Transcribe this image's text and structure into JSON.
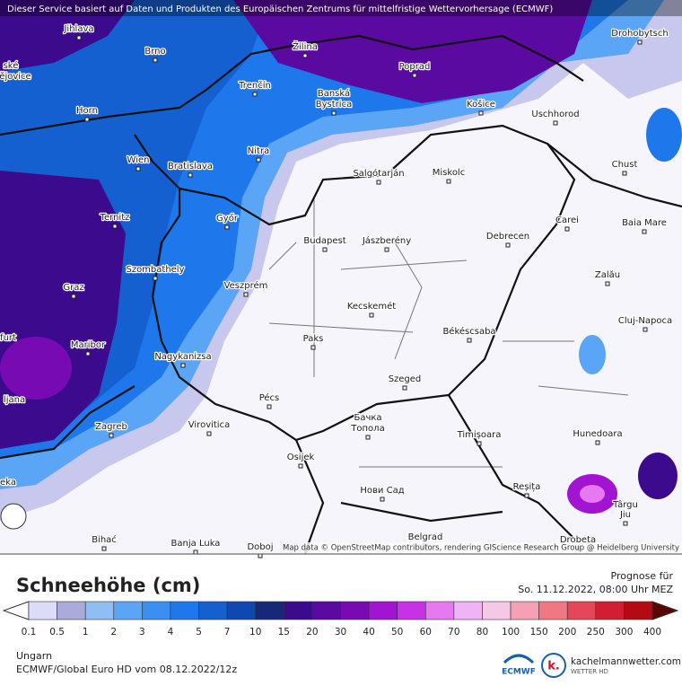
{
  "header": {
    "notice": "Dieser Service basiert auf Daten und Produkten des Europäischen Zentrums für mittelfristige Wettervorhersage (ECMWF)"
  },
  "map": {
    "cities": [
      "Jihlava",
      "Brno",
      "Žilina",
      "Poprad",
      "Drohobytsch",
      "ské",
      "ějovice",
      "Trenčín",
      "Banská",
      "Bystrica",
      "Košice",
      "Uschhorod",
      "Horn",
      "Nitra",
      "Wien",
      "Bratislava",
      "Salgótarján",
      "Miskolc",
      "Chust",
      "Ternitz",
      "Győr",
      "Carei",
      "Baia Mare",
      "Budapest",
      "Jászberény",
      "Debrecen",
      "Szombathely",
      "Zalău",
      "Graz",
      "Veszprém",
      "Kecskemét",
      "Cluj-Napoca",
      "furt",
      "Paks",
      "Békéscsaba",
      "Maribor",
      "Nagykanizsa",
      "Szeged",
      "ljana",
      "Pécs",
      "Zagreb",
      "Virovitica",
      "Бачка",
      "Топола",
      "Timișoara",
      "Hunedoara",
      "Osijek",
      "eka",
      "Нови Сад",
      "Reșița",
      "Târgu",
      "Jiu",
      "Bihać",
      "Banja Luka",
      "Doboj",
      "Belgrad",
      "Drobeta"
    ],
    "attribution": "Map data © OpenStreetMap contributors, rendering GIScience Research Group @ Heidelberg University"
  },
  "legend": {
    "title": "Schneehöhe (cm)",
    "levels": [
      0.1,
      0.5,
      1,
      2,
      3,
      4,
      5,
      7,
      10,
      15,
      20,
      30,
      40,
      50,
      60,
      70,
      80,
      100,
      150,
      200,
      250,
      300,
      400
    ],
    "colors": [
      "#dcdcf8",
      "#aaaadc",
      "#8fbff2",
      "#5aa5f5",
      "#3a8ff0",
      "#1e78eb",
      "#1560d0",
      "#0f48b0",
      "#17287a",
      "#3c0a8c",
      "#5a0aa0",
      "#780ab4",
      "#a014d2",
      "#c832e6",
      "#e678f0",
      "#f0b4f5",
      "#f5c8e6",
      "#f5a0b4",
      "#f07882",
      "#e6465a",
      "#d21e32",
      "#b40a14",
      "#8c0a0a"
    ],
    "under_color": "#ffffff",
    "over_color": "#5a0505"
  },
  "forecast": {
    "label": "Prognose für",
    "time": "So. 11.12.2022, 08:00 Uhr MEZ"
  },
  "footer": {
    "region": "Ungarn",
    "model": "ECMWF/Global Euro HD vom  08.12.2022/12z",
    "ecmwf_logo": "ECMWF",
    "site": "kachelmannwetter.com",
    "site_sub": "WETTER HD",
    "site_icon": "k."
  }
}
